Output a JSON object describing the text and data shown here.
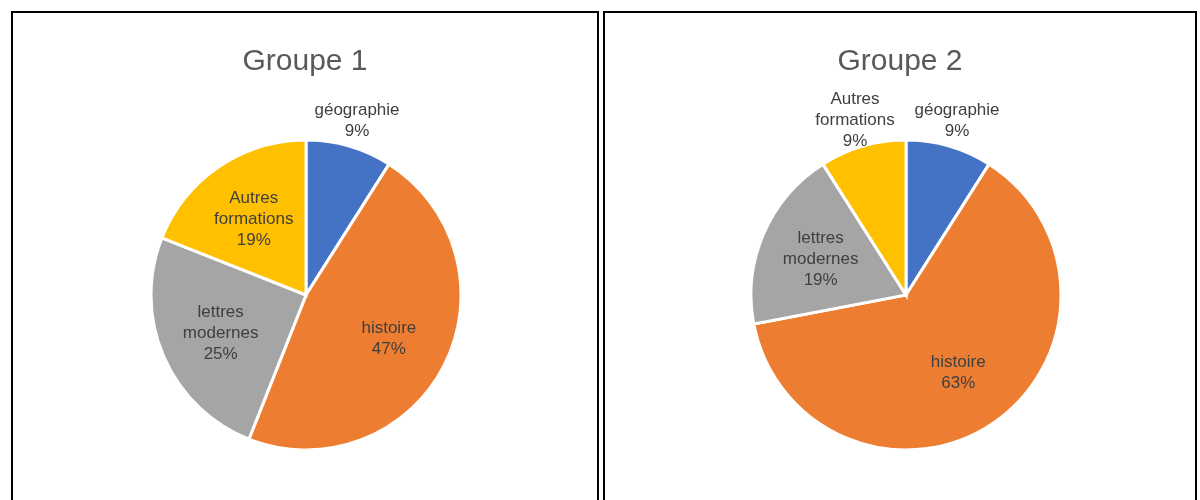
{
  "chart_data": [
    {
      "type": "pie",
      "title": "Groupe 1",
      "categories": [
        "géographie",
        "histoire",
        "lettres modernes",
        "Autres formations"
      ],
      "values": [
        9,
        47,
        25,
        19
      ],
      "colors": [
        "#4472c4",
        "#ed7d31",
        "#a5a5a5",
        "#ffc000"
      ],
      "value_labels": [
        "9%",
        "47%",
        "25%",
        "19%"
      ]
    },
    {
      "type": "pie",
      "title": "Groupe 2",
      "categories": [
        "géographie",
        "histoire",
        "lettres modernes",
        "Autres formations"
      ],
      "values": [
        9,
        63,
        19,
        9
      ],
      "colors": [
        "#4472c4",
        "#ed7d31",
        "#a5a5a5",
        "#ffc000"
      ],
      "value_labels": [
        "9%",
        "63%",
        "19%",
        "9%"
      ]
    }
  ]
}
